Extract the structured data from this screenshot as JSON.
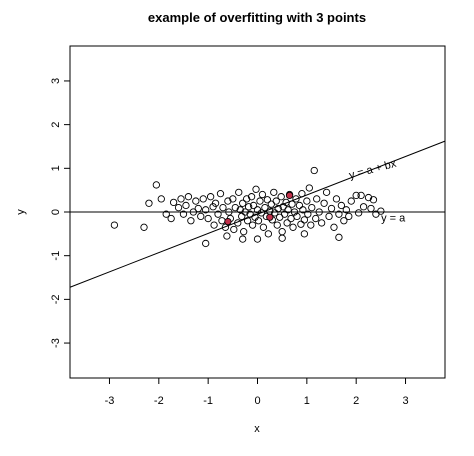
{
  "chart_data": {
    "type": "scatter",
    "title": "example of overfitting with 3 points",
    "xlabel": "x",
    "ylabel": "y",
    "xlim": [
      -3.8,
      3.8
    ],
    "ylim": [
      -3.8,
      3.8
    ],
    "xticks": [
      -3,
      -2,
      -1,
      0,
      1,
      2,
      3
    ],
    "yticks": [
      -3,
      -2,
      -1,
      0,
      1,
      2,
      3
    ],
    "grid": false,
    "series": [
      {
        "role": "background points",
        "marker": "open-circle",
        "color": "#000000",
        "points": [
          [
            -2.9,
            -0.3
          ],
          [
            -2.3,
            -0.35
          ],
          [
            -2.2,
            0.2
          ],
          [
            -2.05,
            0.62
          ],
          [
            -1.95,
            0.3
          ],
          [
            -1.85,
            -0.05
          ],
          [
            -1.75,
            -0.15
          ],
          [
            -1.7,
            0.22
          ],
          [
            -1.6,
            0.1
          ],
          [
            -1.55,
            0.3
          ],
          [
            -1.5,
            -0.05
          ],
          [
            -1.45,
            0.15
          ],
          [
            -1.4,
            0.35
          ],
          [
            -1.35,
            -0.2
          ],
          [
            -1.3,
            0.0
          ],
          [
            -1.25,
            0.25
          ],
          [
            -1.2,
            0.08
          ],
          [
            -1.15,
            -0.1
          ],
          [
            -1.1,
            0.3
          ],
          [
            -1.05,
            0.05
          ],
          [
            -1.0,
            -0.15
          ],
          [
            -0.95,
            0.35
          ],
          [
            -0.9,
            0.12
          ],
          [
            -0.88,
            -0.3
          ],
          [
            -0.85,
            0.2
          ],
          [
            -0.8,
            -0.05
          ],
          [
            -0.75,
            0.42
          ],
          [
            -0.72,
            -0.2
          ],
          [
            -0.7,
            0.1
          ],
          [
            -0.65,
            -0.35
          ],
          [
            -0.6,
            0.25
          ],
          [
            -0.58,
            0.0
          ],
          [
            -0.55,
            -0.15
          ],
          [
            -0.5,
            0.3
          ],
          [
            -0.48,
            -0.4
          ],
          [
            -0.45,
            0.1
          ],
          [
            -0.4,
            -0.25
          ],
          [
            -0.38,
            0.45
          ],
          [
            -0.35,
            0.05
          ],
          [
            -0.32,
            -0.1
          ],
          [
            -0.3,
            0.2
          ],
          [
            -0.28,
            -0.45
          ],
          [
            -0.25,
            0.0
          ],
          [
            -0.22,
            0.3
          ],
          [
            -0.2,
            -0.2
          ],
          [
            -0.18,
            0.12
          ],
          [
            -0.15,
            -0.05
          ],
          [
            -0.12,
            0.35
          ],
          [
            -0.1,
            -0.3
          ],
          [
            -0.08,
            0.15
          ],
          [
            -0.05,
            -0.12
          ],
          [
            -0.03,
            0.52
          ],
          [
            0.0,
            0.05
          ],
          [
            0.02,
            -0.2
          ],
          [
            0.05,
            0.25
          ],
          [
            0.08,
            -0.02
          ],
          [
            0.1,
            0.4
          ],
          [
            0.12,
            -0.35
          ],
          [
            0.15,
            0.1
          ],
          [
            0.18,
            -0.1
          ],
          [
            0.2,
            0.28
          ],
          [
            0.22,
            -0.5
          ],
          [
            0.25,
            0.02
          ],
          [
            0.28,
            0.18
          ],
          [
            0.3,
            -0.18
          ],
          [
            0.33,
            0.45
          ],
          [
            0.35,
            -0.02
          ],
          [
            0.38,
            0.25
          ],
          [
            0.4,
            -0.3
          ],
          [
            0.42,
            0.08
          ],
          [
            0.45,
            -0.12
          ],
          [
            0.48,
            0.35
          ],
          [
            0.5,
            -0.45
          ],
          [
            0.52,
            0.12
          ],
          [
            0.55,
            -0.05
          ],
          [
            0.58,
            0.22
          ],
          [
            0.6,
            -0.25
          ],
          [
            0.62,
            0.05
          ],
          [
            0.65,
            0.4
          ],
          [
            0.68,
            -0.15
          ],
          [
            0.7,
            0.18
          ],
          [
            0.72,
            -0.35
          ],
          [
            0.75,
            0.0
          ],
          [
            0.78,
            0.3
          ],
          [
            0.8,
            -0.1
          ],
          [
            0.85,
            0.15
          ],
          [
            0.88,
            -0.28
          ],
          [
            0.9,
            0.42
          ],
          [
            0.92,
            0.05
          ],
          [
            0.95,
            -0.18
          ],
          [
            1.0,
            0.25
          ],
          [
            1.02,
            -0.05
          ],
          [
            1.05,
            0.55
          ],
          [
            1.08,
            -0.3
          ],
          [
            1.1,
            0.1
          ],
          [
            1.15,
            0.95
          ],
          [
            1.18,
            -0.15
          ],
          [
            1.2,
            0.3
          ],
          [
            1.25,
            0.0
          ],
          [
            1.3,
            -0.25
          ],
          [
            1.35,
            0.2
          ],
          [
            1.4,
            0.45
          ],
          [
            1.45,
            -0.1
          ],
          [
            1.5,
            0.08
          ],
          [
            1.55,
            -0.35
          ],
          [
            1.6,
            0.3
          ],
          [
            1.65,
            -0.05
          ],
          [
            1.7,
            0.15
          ],
          [
            1.75,
            -0.2
          ],
          [
            1.8,
            0.05
          ],
          [
            1.85,
            -0.1
          ],
          [
            1.9,
            0.25
          ],
          [
            2.0,
            0.38
          ],
          [
            2.05,
            -0.02
          ],
          [
            2.1,
            0.38
          ],
          [
            2.15,
            0.12
          ],
          [
            2.25,
            0.33
          ],
          [
            2.3,
            0.08
          ],
          [
            2.35,
            0.28
          ],
          [
            2.4,
            -0.05
          ],
          [
            2.5,
            0.02
          ],
          [
            -0.62,
            -0.55
          ],
          [
            0.0,
            -0.62
          ],
          [
            0.5,
            -0.6
          ],
          [
            1.65,
            -0.58
          ],
          [
            -1.05,
            -0.72
          ],
          [
            -0.3,
            -0.62
          ],
          [
            0.95,
            -0.5
          ]
        ]
      },
      {
        "role": "fitted points",
        "marker": "filled-circle",
        "color": "#c0304a",
        "points": [
          [
            -0.6,
            -0.22
          ],
          [
            0.25,
            -0.12
          ],
          [
            0.65,
            0.38
          ]
        ]
      }
    ],
    "lines": [
      {
        "label": "y = a + bx",
        "intercept": -0.05,
        "slope": 0.44
      },
      {
        "label": "y = a",
        "intercept": 0.0,
        "slope": 0.0
      }
    ],
    "annotations": [
      {
        "text": "y = a + bx",
        "x": 2.35,
        "y": 0.9
      },
      {
        "text": "y = a",
        "x": 2.75,
        "y": -0.22
      }
    ]
  }
}
